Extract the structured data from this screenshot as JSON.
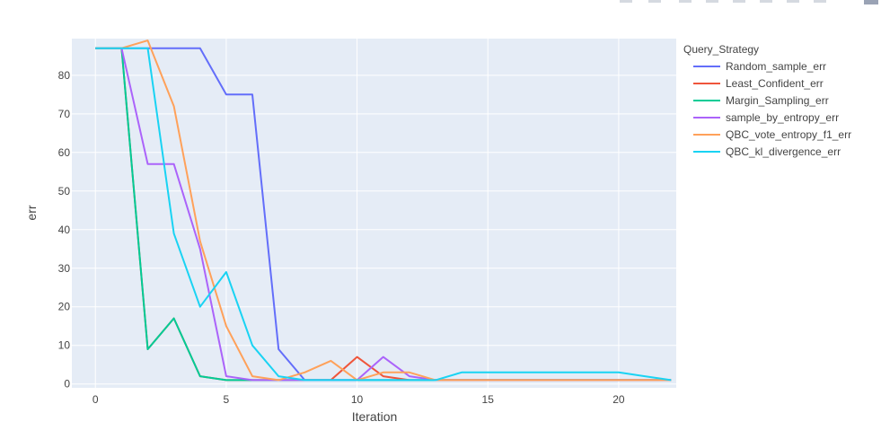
{
  "chart_data": {
    "type": "line",
    "xlabel": "Iteration",
    "ylabel": "err",
    "xlim": [
      -0.9,
      22.2
    ],
    "ylim": [
      -1,
      89.5
    ],
    "x_ticks": [
      0,
      5,
      10,
      15,
      20
    ],
    "y_ticks": [
      0,
      10,
      20,
      30,
      40,
      50,
      60,
      70,
      80
    ],
    "grid": true,
    "legend_title": "Query_Strategy",
    "legend_position": "right",
    "x": [
      0,
      1,
      2,
      3,
      4,
      5,
      6,
      7,
      8,
      9,
      10,
      11,
      12,
      13,
      14,
      15,
      16,
      17,
      18,
      19,
      20,
      21,
      22
    ],
    "series": [
      {
        "name": "Random_sample_err",
        "color": "#636efa",
        "values": [
          87,
          87,
          87,
          87,
          87,
          75,
          75,
          9,
          1,
          1,
          1,
          1,
          1,
          1,
          1,
          1,
          1,
          1,
          1,
          1,
          1,
          1,
          1
        ]
      },
      {
        "name": "Least_Confident_err",
        "color": "#ef553b",
        "values": [
          87,
          87,
          9,
          17,
          2,
          1,
          1,
          1,
          1,
          1,
          7,
          2,
          1,
          1,
          1,
          1,
          1,
          1,
          1,
          1,
          1,
          1,
          1
        ]
      },
      {
        "name": "Margin_Sampling_err",
        "color": "#00cc96",
        "values": [
          87,
          87,
          9,
          17,
          2,
          1,
          1,
          1,
          1,
          1,
          1,
          1,
          1,
          1,
          1,
          1,
          1,
          1,
          1,
          1,
          1,
          1,
          1
        ]
      },
      {
        "name": "sample_by_entropy_err",
        "color": "#ab63fa",
        "values": [
          87,
          87,
          57,
          57,
          35,
          2,
          1,
          1,
          1,
          1,
          1,
          7,
          2,
          1,
          1,
          1,
          1,
          1,
          1,
          1,
          1,
          1,
          1
        ]
      },
      {
        "name": "QBC_vote_entropy_f1_err",
        "color": "#ffa15a",
        "values": [
          87,
          87,
          89,
          72,
          37,
          15,
          2,
          1,
          3,
          6,
          1,
          3,
          3,
          1,
          1,
          1,
          1,
          1,
          1,
          1,
          1,
          1,
          1
        ]
      },
      {
        "name": "QBC_kl_divergence_err",
        "color": "#19d3f3",
        "values": [
          87,
          87,
          87,
          39,
          20,
          29,
          10,
          2,
          1,
          1,
          1,
          1,
          1,
          1,
          3,
          3,
          3,
          3,
          3,
          3,
          3,
          2,
          1
        ]
      }
    ]
  }
}
